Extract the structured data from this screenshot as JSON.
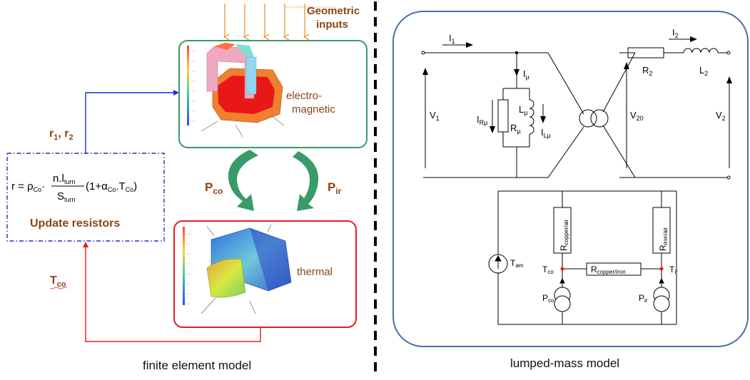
{
  "left": {
    "geometric_inputs": [
      "Geometric",
      "inputs"
    ],
    "em_box_label": [
      "electro-",
      "magnetic"
    ],
    "thermal_box_label": "thermal",
    "r_label": "r",
    "r_sub1": "1",
    "r_sep": ", ",
    "r_sub2": "2",
    "p_co": "P",
    "p_co_sub": "co",
    "p_ir": "P",
    "p_ir_sub": "ir",
    "t_co": "T",
    "t_co_sub": "co",
    "formula": {
      "lhs": "r = ρ",
      "co1": "Co",
      "dot1": "·",
      "num": "n.l",
      "num_sub": "turn",
      "den": "S",
      "den_sub": "turn",
      "rest": "(1+α",
      "co2": "Co",
      "rest2": ".T",
      "co3": "Co",
      "close": ")"
    },
    "update_resistors": "Update resistors",
    "caption": "finite element model"
  },
  "right": {
    "caption": "lumped-mass model",
    "circuit": {
      "I1": "I",
      "I1_sub": "1",
      "I2": "I",
      "I2_sub": "2",
      "Imu": "I",
      "Imu_sub": "µ",
      "R2": "R",
      "R2_sub": "2",
      "L2": "L",
      "L2_sub": "2",
      "V1": "V",
      "V1_sub": "1",
      "V20": "V",
      "V20_sub": "20",
      "V2": "V",
      "V2_sub": "2",
      "IRmu": "I",
      "IRmu_sub": "Rµ",
      "Rmu": "R",
      "Rmu_sub": "µ",
      "Lmu": "L",
      "Lmu_sub": "µ",
      "ILmu": "I",
      "ILmu_sub": "Lµ"
    },
    "thermal": {
      "Tam": "T",
      "Tam_sub": "am",
      "Tco": "T",
      "Tco_sub": "co",
      "Tir": "T",
      "Tir_sub": "ir",
      "Pco": "P",
      "Pco_sub": "co",
      "Pir": "P",
      "Pir_sub": "ir",
      "Rcopper_air": "R",
      "Rcopper_air_sub": "copper/air",
      "Riron_air": "R",
      "Riron_air_sub": "iron/air",
      "Rcopper_iron": "R",
      "Rcopper_iron_sub": "copper/iron"
    }
  },
  "colors": {
    "orange": "#f08a24",
    "title_brown": "#8b4513",
    "green_box": "#3a9a6a",
    "red_box": "#e02020",
    "blue": "#1a2bd8",
    "green_arrow": "#3a9a6a",
    "frame": "#4a6fa5"
  }
}
